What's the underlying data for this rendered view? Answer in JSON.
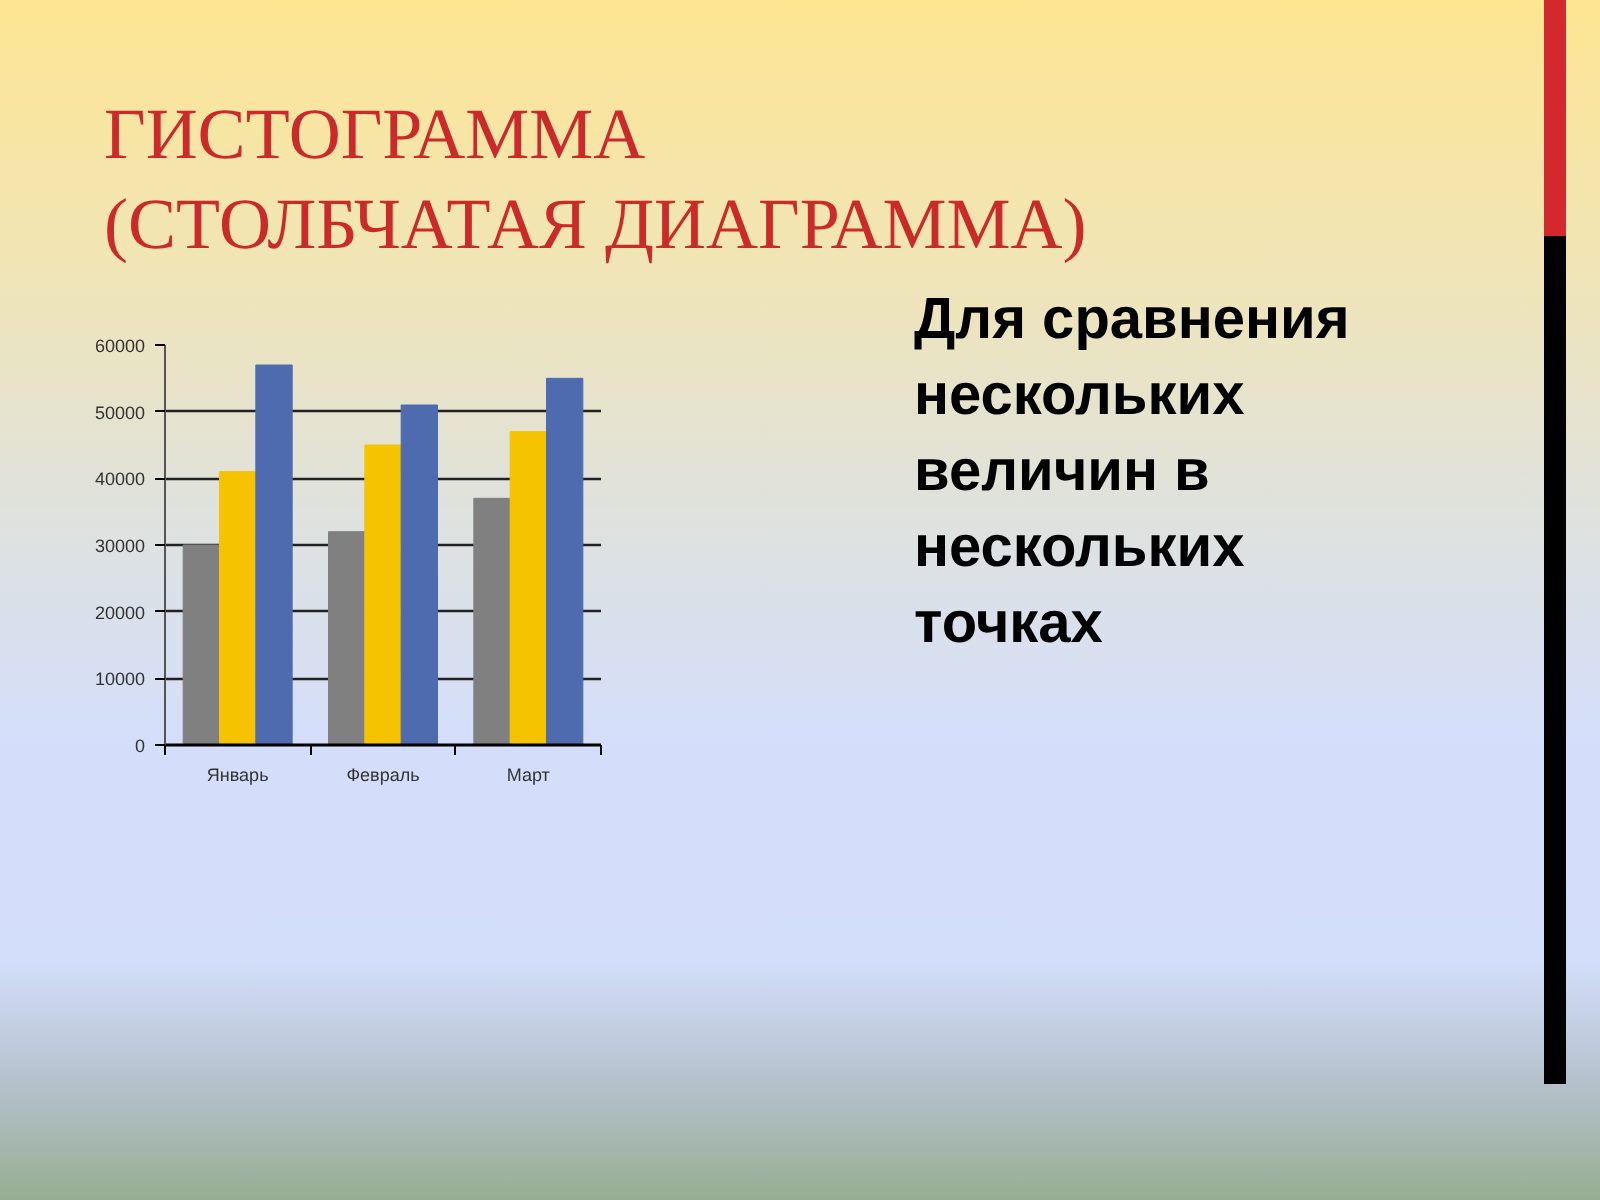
{
  "chart_data": {
    "type": "bar",
    "title": "ГИСТОГРАММА\n(СТОЛБЧАТАЯ ДИАГРАММА)",
    "annotations": [
      "Для сравнения нескольких величин в нескольких точках"
    ],
    "categories": [
      "Январь",
      "Февраль",
      "Март"
    ],
    "series": [
      {
        "color": "#808080",
        "values": [
          30000,
          32000,
          37000
        ]
      },
      {
        "color": "#f5c300",
        "values": [
          41000,
          45000,
          47000
        ]
      },
      {
        "color": "#4f6bb0",
        "values": [
          57000,
          51000,
          55000
        ]
      }
    ],
    "ylim": [
      0,
      60000
    ],
    "yticks": [
      0,
      10000,
      20000,
      30000,
      40000,
      50000,
      60000
    ],
    "grid": "y"
  }
}
